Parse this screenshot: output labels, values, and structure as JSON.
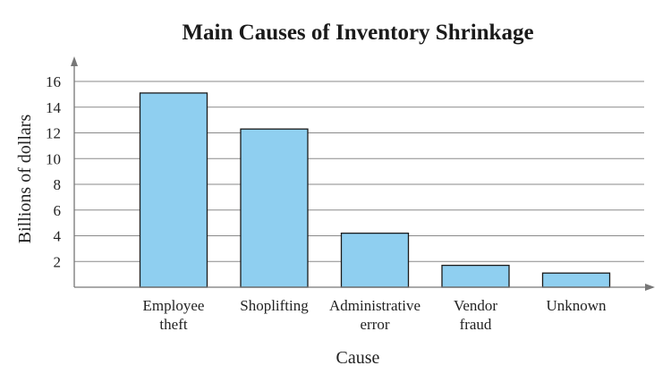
{
  "chart_data": {
    "type": "bar",
    "title": "Main Causes of Inventory Shrinkage",
    "xlabel": "Cause",
    "ylabel": "Billions of dollars",
    "categories": [
      [
        "Employee",
        "theft"
      ],
      [
        "Shoplifting"
      ],
      [
        "Administrative",
        "error"
      ],
      [
        "Vendor",
        "fraud"
      ],
      [
        "Unknown"
      ]
    ],
    "values": [
      15.1,
      12.3,
      4.2,
      1.7,
      1.1
    ],
    "yticks": [
      2,
      4,
      6,
      8,
      10,
      12,
      14,
      16
    ],
    "ylim": [
      0,
      16
    ],
    "grid": true,
    "bar_color": "#8fcff0",
    "bar_edge_color": "#1a1a1a"
  }
}
